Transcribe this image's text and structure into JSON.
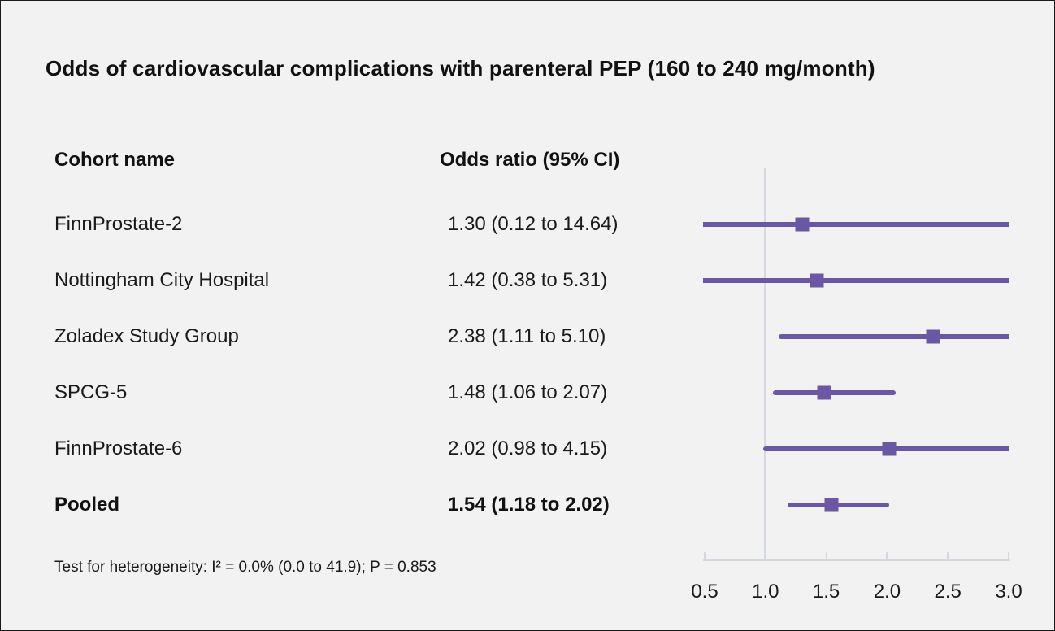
{
  "title": "Odds of cardiovascular complications with parenteral PEP (160 to 240 mg/month)",
  "columns": {
    "cohort": "Cohort name",
    "odds": "Odds ratio (95% CI)"
  },
  "footnote": "Test for heterogeneity: I² = 0.0% (0.0 to 41.9); P = 0.853",
  "colors": {
    "accent_purple": "#6a58a4",
    "axis_gray": "#d5d9e0",
    "background": "#f2f2f2",
    "text": "#1a1a1a"
  },
  "chart_data": {
    "type": "forest",
    "title": "Odds of cardiovascular complications with parenteral PEP (160 to 240 mg/month)",
    "xlabel": "",
    "ylabel": "",
    "x_range": [
      0.5,
      3.0
    ],
    "x_ticks": [
      0.5,
      1.0,
      1.5,
      2.0,
      2.5,
      3.0
    ],
    "x_tick_labels": [
      "0.5",
      "1.0",
      "1.5",
      "2.0",
      "2.5",
      "3.0"
    ],
    "reference_line": 1.0,
    "grid": false,
    "rows": [
      {
        "label": "FinnProstate-2",
        "value_text": "1.30 (0.12 to 14.64)",
        "estimate": 1.3,
        "ci_low": 0.12,
        "ci_high": 14.64,
        "bold": false
      },
      {
        "label": "Nottingham City Hospital",
        "value_text": "1.42 (0.38 to 5.31)",
        "estimate": 1.42,
        "ci_low": 0.38,
        "ci_high": 5.31,
        "bold": false
      },
      {
        "label": "Zoladex Study Group",
        "value_text": "2.38 (1.11 to 5.10)",
        "estimate": 2.38,
        "ci_low": 1.11,
        "ci_high": 5.1,
        "bold": false
      },
      {
        "label": "SPCG-5",
        "value_text": "1.48 (1.06 to 2.07)",
        "estimate": 1.48,
        "ci_low": 1.06,
        "ci_high": 2.07,
        "bold": false
      },
      {
        "label": "FinnProstate-6",
        "value_text": "2.02 (0.98 to 4.15)",
        "estimate": 2.02,
        "ci_low": 0.98,
        "ci_high": 4.15,
        "bold": false
      },
      {
        "label": "Pooled",
        "value_text": "1.54 (1.18 to 2.02)",
        "estimate": 1.54,
        "ci_low": 1.18,
        "ci_high": 2.02,
        "bold": true
      }
    ]
  }
}
